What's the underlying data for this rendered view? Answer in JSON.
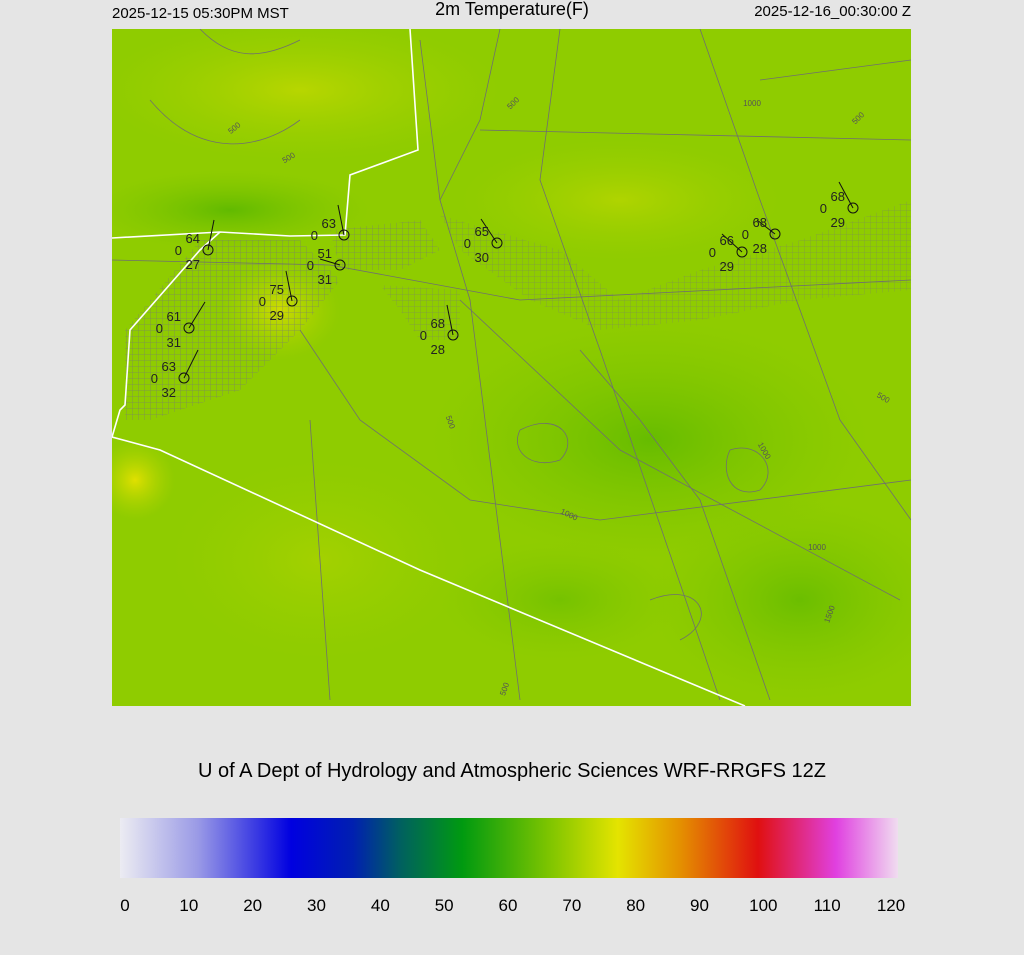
{
  "header": {
    "left": "2025-12-15 05:30PM MST",
    "title": "2m Temperature(F)",
    "right": "2025-12-16_00:30:00 Z"
  },
  "credit": "U of A Dept of Hydrology and Atmospheric Sciences WRF-RRGFS 12Z",
  "colorbar": {
    "ticks": [
      0,
      10,
      20,
      30,
      40,
      50,
      60,
      70,
      80,
      90,
      100,
      110,
      120
    ]
  },
  "stations": [
    {
      "temp": 64,
      "cloud": 0,
      "dew": 27
    },
    {
      "temp": 63,
      "cloud": 0
    },
    {
      "temp": 51,
      "cloud": 0,
      "dew": 31
    },
    {
      "temp": 75,
      "cloud": 0,
      "dew": 29
    },
    {
      "temp": 61,
      "cloud": 0,
      "dew": 31
    },
    {
      "temp": 63,
      "cloud": 0,
      "dew": 32
    },
    {
      "temp": 65,
      "cloud": 0,
      "dew": 30
    },
    {
      "temp": 68,
      "cloud": 0,
      "dew": 28
    },
    {
      "temp": 66,
      "cloud": 0,
      "dew": 29
    },
    {
      "temp": 68,
      "cloud": 0,
      "dew": 28
    },
    {
      "temp": 68,
      "cloud": 0,
      "dew": 29
    }
  ],
  "contour_labels": [
    "500",
    "500",
    "1000",
    "500",
    "500",
    "500",
    "1000",
    "1000",
    "1000",
    "1500",
    "500",
    "500"
  ]
}
